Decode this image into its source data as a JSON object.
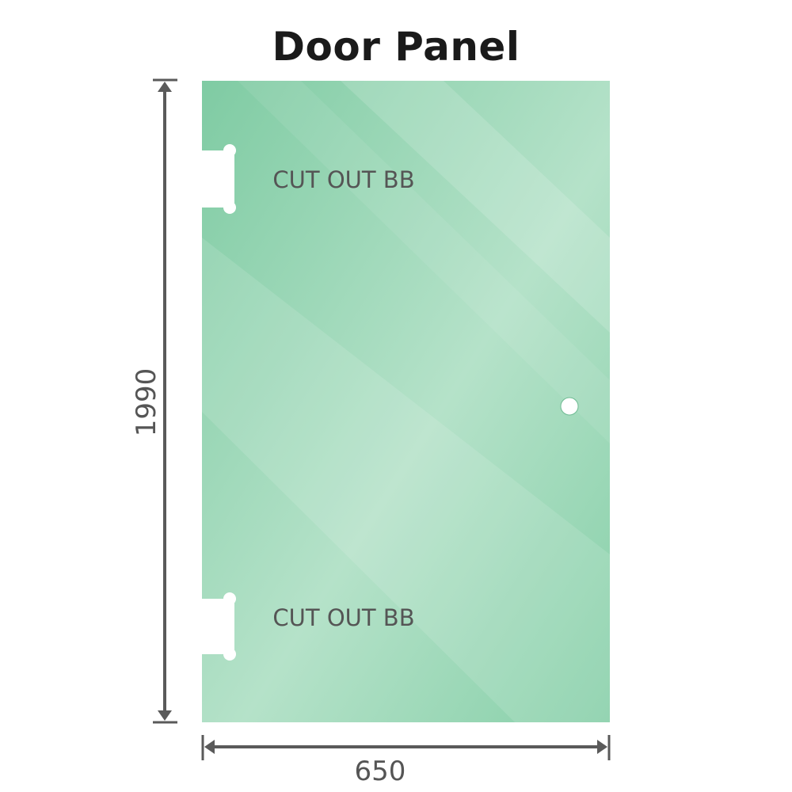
{
  "title": "Door Panel",
  "panel": {
    "glass_color": "#86cfa8",
    "cutout_labels": [
      "CUT OUT BB",
      "CUT OUT BB"
    ]
  },
  "dimensions": {
    "height": "1990",
    "width": "650",
    "line_color": "#5a5a5a"
  }
}
